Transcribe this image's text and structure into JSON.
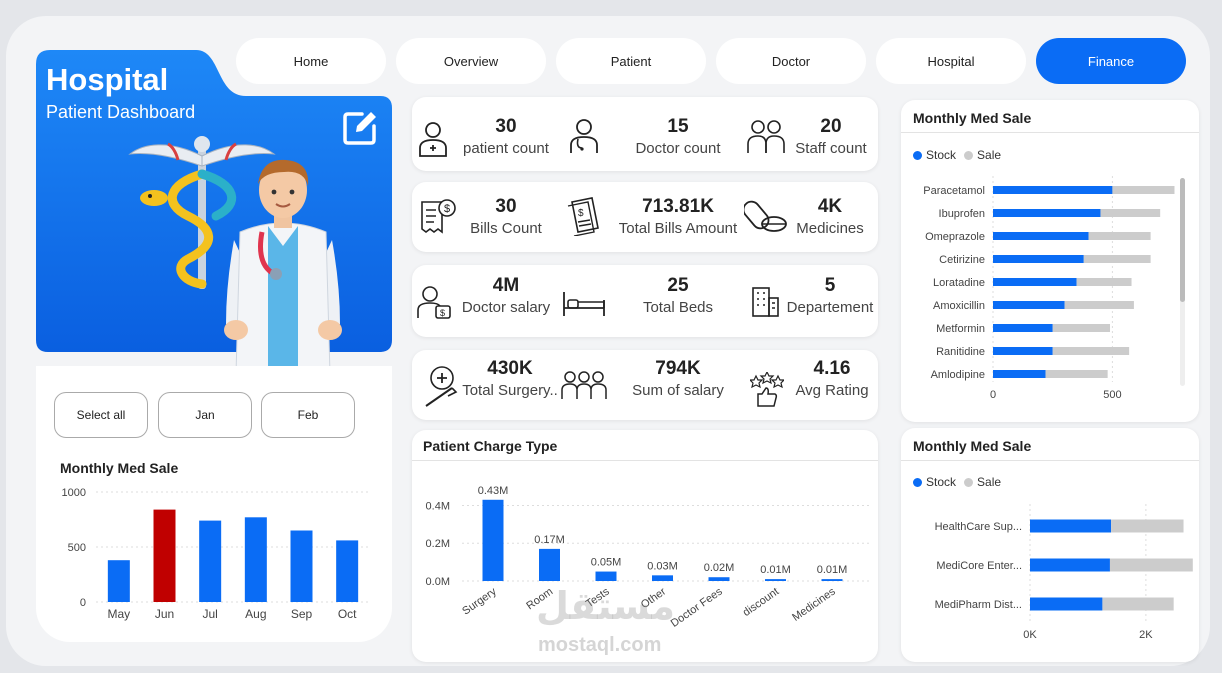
{
  "nav": {
    "tabs": [
      {
        "label": "Home"
      },
      {
        "label": "Overview"
      },
      {
        "label": "Patient"
      },
      {
        "label": "Doctor"
      },
      {
        "label": "Hospital"
      },
      {
        "label": "Finance",
        "active": true
      }
    ]
  },
  "hero": {
    "title": "Hospital",
    "subtitle": "Patient Dashboard",
    "edit_icon": "edit-icon"
  },
  "filters": {
    "buttons": [
      {
        "label": "Select all"
      },
      {
        "label": "Jan"
      },
      {
        "label": "Feb"
      }
    ]
  },
  "kpis": {
    "row1": [
      {
        "value": "30",
        "label": "patient count",
        "icon": "patient-icon"
      },
      {
        "value": "15",
        "label": "Doctor count",
        "icon": "doctor-icon"
      },
      {
        "value": "20",
        "label": "Staff count",
        "icon": "staff-icon"
      }
    ],
    "row2": [
      {
        "value": "30",
        "label": "Bills Count",
        "icon": "bill-icon"
      },
      {
        "value": "713.81K",
        "label": "Total Bills Amount",
        "icon": "invoice-icon"
      },
      {
        "value": "4K",
        "label": "Medicines",
        "icon": "pills-icon"
      }
    ],
    "row3": [
      {
        "value": "4M",
        "label": "Doctor salary",
        "icon": "doctor-salary-icon"
      },
      {
        "value": "25",
        "label": "Total Beds",
        "icon": "bed-icon"
      },
      {
        "value": "5",
        "label": "Departement",
        "icon": "building-icon"
      }
    ],
    "row4": [
      {
        "value": "430K",
        "label": "Total Surgery..",
        "icon": "surgery-icon"
      },
      {
        "value": "794K",
        "label": "Sum of salary",
        "icon": "team-icon"
      },
      {
        "value": "4.16",
        "label": "Avg Rating",
        "icon": "rating-icon"
      }
    ]
  },
  "watermark": {
    "arabic": "مستقل",
    "latin": "mostaql.com"
  },
  "colors": {
    "accent": "#0a6cf5",
    "highlight": "#c00000",
    "sale": "#cccccc"
  },
  "chart_data": [
    {
      "id": "monthly-med-sale-columns",
      "type": "bar",
      "title": "Monthly Med Sale",
      "categories": [
        "May",
        "Jun",
        "Jul",
        "Aug",
        "Sep",
        "Oct"
      ],
      "values": [
        380,
        840,
        740,
        770,
        650,
        560
      ],
      "highlight_index": 1,
      "ylim": [
        0,
        1000
      ],
      "yticks": [
        "0",
        "500",
        "1000"
      ],
      "grid": true
    },
    {
      "id": "patient-charge-type",
      "type": "bar",
      "title": "Patient Charge Type",
      "categories": [
        "Surgery",
        "Room",
        "Tests",
        "Other",
        "Doctor Fees",
        "discount",
        "Medicines"
      ],
      "values": [
        0.43,
        0.17,
        0.05,
        0.03,
        0.02,
        0.01,
        0.01
      ],
      "data_labels": [
        "0.43M",
        "0.17M",
        "0.05M",
        "0.03M",
        "0.02M",
        "0.01M",
        "0.01M"
      ],
      "ylim": [
        0,
        0.45
      ],
      "yticks": [
        "0.0M",
        "0.2M",
        "0.4M"
      ],
      "grid": true
    },
    {
      "id": "monthly-med-sale-medicines",
      "type": "bar",
      "orientation": "horizontal",
      "stacked": true,
      "title": "Monthly Med Sale",
      "categories": [
        "Paracetamol",
        "Ibuprofen",
        "Omeprazole",
        "Cetirizine",
        "Loratadine",
        "Amoxicillin",
        "Metformin",
        "Ranitidine",
        "Amlodipine"
      ],
      "series": [
        {
          "name": "Stock",
          "values": [
            500,
            450,
            400,
            380,
            350,
            300,
            250,
            250,
            220
          ]
        },
        {
          "name": "Sale",
          "values": [
            260,
            250,
            260,
            280,
            230,
            290,
            240,
            320,
            260
          ]
        }
      ],
      "xlim": [
        0,
        850
      ],
      "xticks": [
        "0",
        "500"
      ],
      "legend": "top-left",
      "grid": true
    },
    {
      "id": "monthly-med-sale-suppliers",
      "type": "bar",
      "orientation": "horizontal",
      "stacked": true,
      "title": "Monthly Med Sale",
      "categories": [
        "HealthCare Sup...",
        "MediCore Enter...",
        "MediPharm Dist..."
      ],
      "series": [
        {
          "name": "Stock",
          "values": [
            1400,
            1380,
            1250
          ]
        },
        {
          "name": "Sale",
          "values": [
            1250,
            1430,
            1230
          ]
        }
      ],
      "xlim": [
        0,
        2900
      ],
      "xticks": [
        "0K",
        "2K"
      ],
      "legend": "top-left",
      "grid": true
    }
  ]
}
